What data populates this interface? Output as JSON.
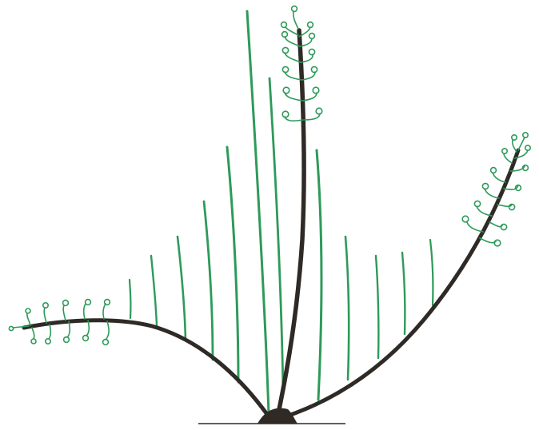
{
  "illustration": {
    "colors": {
      "trunk": "#2f2a26",
      "shoot": "#2e9a5a",
      "background": "#ffffff"
    }
  }
}
